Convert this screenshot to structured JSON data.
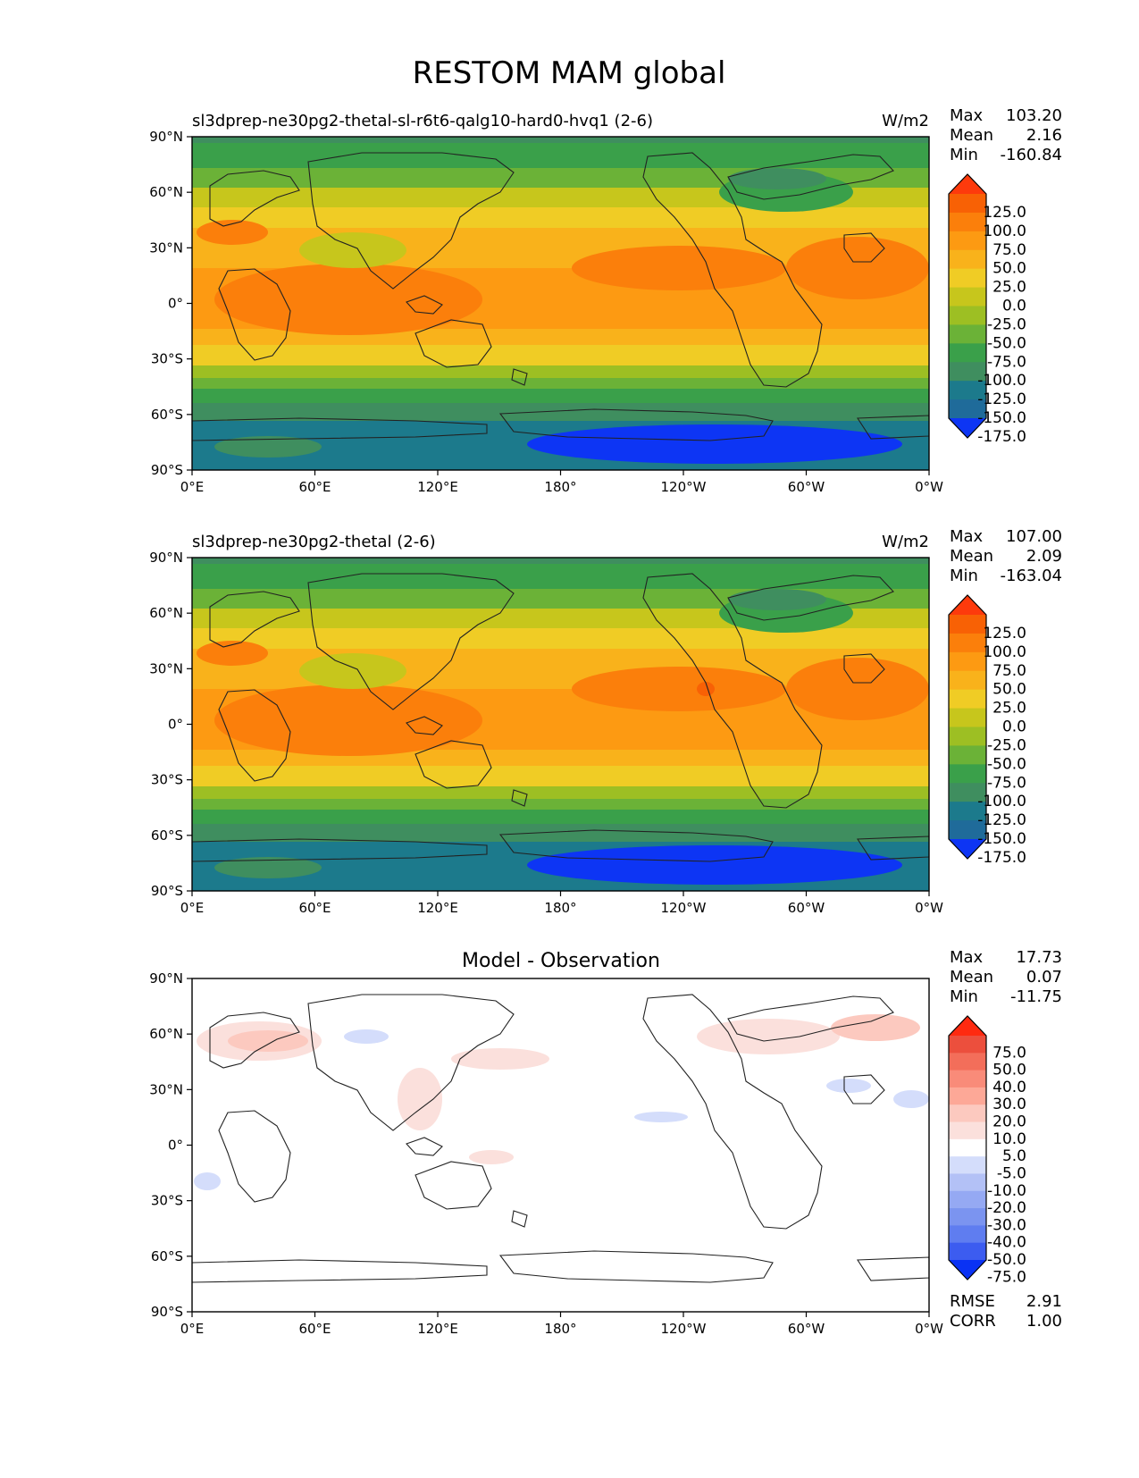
{
  "title": "RESTOM MAM global",
  "colors": {
    "sequential": [
      "#0d35f4",
      "#1f6b9a",
      "#1c7a8c",
      "#3f8e5f",
      "#3aa04a",
      "#6bb237",
      "#9dbf23",
      "#c7c61c",
      "#f0cc25",
      "#f9b21b",
      "#fd9a12",
      "#fb7f0b",
      "#f86105",
      "#fd3a0c"
    ],
    "diverging": [
      "#0a32f4",
      "#3c5cf0",
      "#5f7df0",
      "#7b94f0",
      "#95a9f3",
      "#b3c1f6",
      "#d4ddfb",
      "#ffffff",
      "#fbe0dc",
      "#fcc9bf",
      "#fda897",
      "#f98b79",
      "#f36e5a",
      "#ec4f3d",
      "#fe2a10"
    ],
    "land_outline": "#222222"
  },
  "x_ticks": [
    "0°E",
    "60°E",
    "120°E",
    "180°",
    "120°W",
    "60°W",
    "0°W"
  ],
  "y_ticks": [
    "90°N",
    "60°N",
    "30°N",
    "0°",
    "30°S",
    "60°S",
    "90°S"
  ],
  "panels": [
    {
      "id": "test",
      "left_title": "sl3dprep-ne30pg2-thetal-sl-r6t6-qalg10-hard0-hvq1 (2-6)",
      "center_title": "",
      "units": "W/m2",
      "stats": [
        {
          "label": "Max",
          "value": "103.20"
        },
        {
          "label": "Mean",
          "value": "2.16"
        },
        {
          "label": "Min",
          "value": "-160.84"
        }
      ],
      "colorbar_labels": [
        "125.0",
        "100.0",
        "75.0",
        "50.0",
        "25.0",
        "0.0",
        "-25.0",
        "-50.0",
        "-75.0",
        "-100.0",
        "-125.0",
        "-150.0",
        "-175.0"
      ],
      "extra_stats": []
    },
    {
      "id": "reference",
      "left_title": "sl3dprep-ne30pg2-thetal (2-6)",
      "center_title": "",
      "units": "W/m2",
      "stats": [
        {
          "label": "Max",
          "value": "107.00"
        },
        {
          "label": "Mean",
          "value": "2.09"
        },
        {
          "label": "Min",
          "value": "-163.04"
        }
      ],
      "colorbar_labels": [
        "125.0",
        "100.0",
        "75.0",
        "50.0",
        "25.0",
        "0.0",
        "-25.0",
        "-50.0",
        "-75.0",
        "-100.0",
        "-125.0",
        "-150.0",
        "-175.0"
      ],
      "extra_stats": []
    },
    {
      "id": "difference",
      "left_title": "",
      "center_title": "Model - Observation",
      "units": "",
      "stats": [
        {
          "label": "Max",
          "value": "17.73"
        },
        {
          "label": "Mean",
          "value": "0.07"
        },
        {
          "label": "Min",
          "value": "-11.75"
        }
      ],
      "colorbar_labels": [
        "75.0",
        "50.0",
        "40.0",
        "30.0",
        "20.0",
        "10.0",
        "5.0",
        "-5.0",
        "-10.0",
        "-20.0",
        "-30.0",
        "-40.0",
        "-50.0",
        "-75.0"
      ],
      "extra_stats": [
        {
          "label": "RMSE",
          "value": "2.91"
        },
        {
          "label": "CORR",
          "value": "1.00"
        }
      ]
    }
  ]
}
